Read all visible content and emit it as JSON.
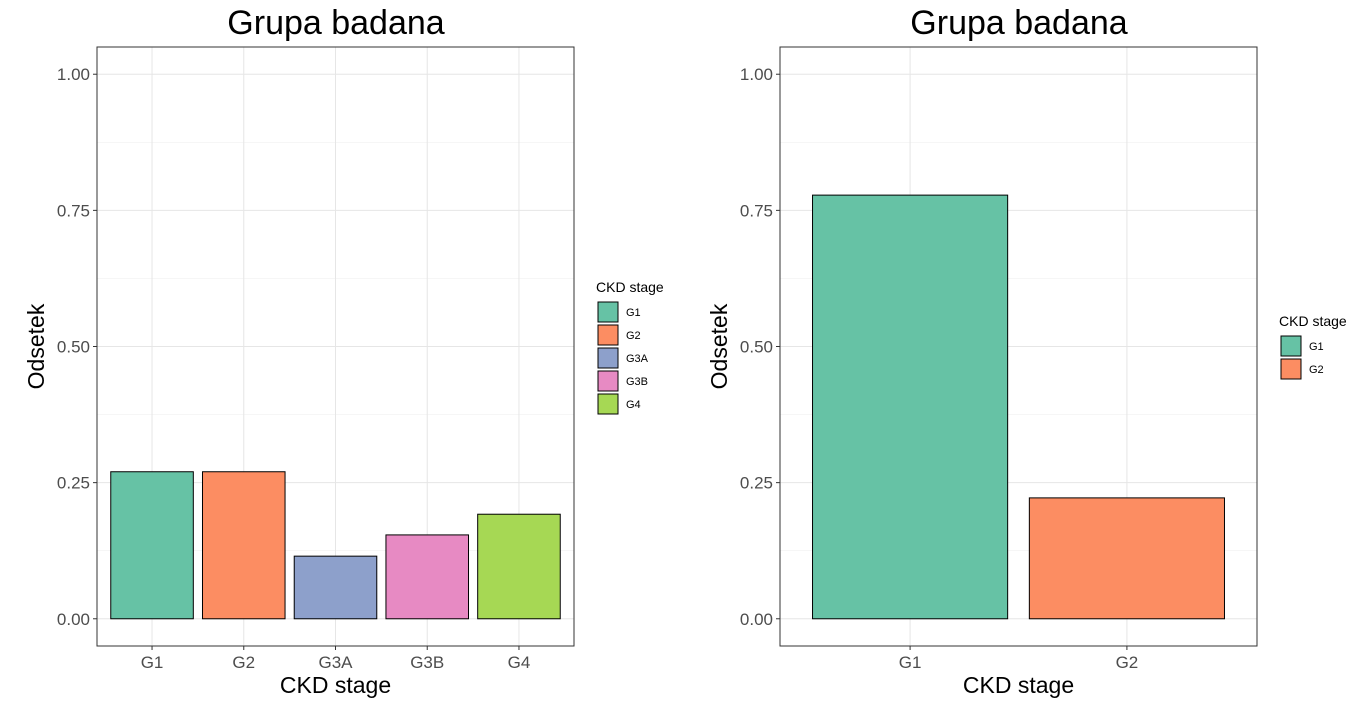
{
  "chart_data": [
    {
      "type": "bar",
      "title": "Grupa badana",
      "xlabel": "CKD stage",
      "ylabel": "Odsetek",
      "categories": [
        "G1",
        "G2",
        "G3A",
        "G3B",
        "G4"
      ],
      "values": [
        0.27,
        0.27,
        0.115,
        0.154,
        0.192
      ],
      "colors": [
        "#66c2a5",
        "#fc8d62",
        "#8da0cb",
        "#e78ac3",
        "#a6d854"
      ],
      "ylim": [
        -0.05,
        1.05
      ],
      "yticks": [
        0.0,
        0.25,
        0.5,
        0.75,
        1.0
      ],
      "ytick_labels": [
        "0.00",
        "0.25",
        "0.50",
        "0.75",
        "1.00"
      ],
      "grid": true,
      "legend": {
        "title": "CKD stage",
        "position": "right",
        "entries": [
          "G1",
          "G2",
          "G3A",
          "G3B",
          "G4"
        ]
      }
    },
    {
      "type": "bar",
      "title": "Grupa badana",
      "xlabel": "CKD stage",
      "ylabel": "Odsetek",
      "categories": [
        "G1",
        "G2"
      ],
      "values": [
        0.778,
        0.222
      ],
      "colors": [
        "#66c2a5",
        "#fc8d62"
      ],
      "ylim": [
        -0.05,
        1.05
      ],
      "yticks": [
        0.0,
        0.25,
        0.5,
        0.75,
        1.0
      ],
      "ytick_labels": [
        "0.00",
        "0.25",
        "0.50",
        "0.75",
        "1.00"
      ],
      "grid": true,
      "legend": {
        "title": "CKD stage",
        "position": "right",
        "entries": [
          "G1",
          "G2"
        ]
      }
    }
  ]
}
